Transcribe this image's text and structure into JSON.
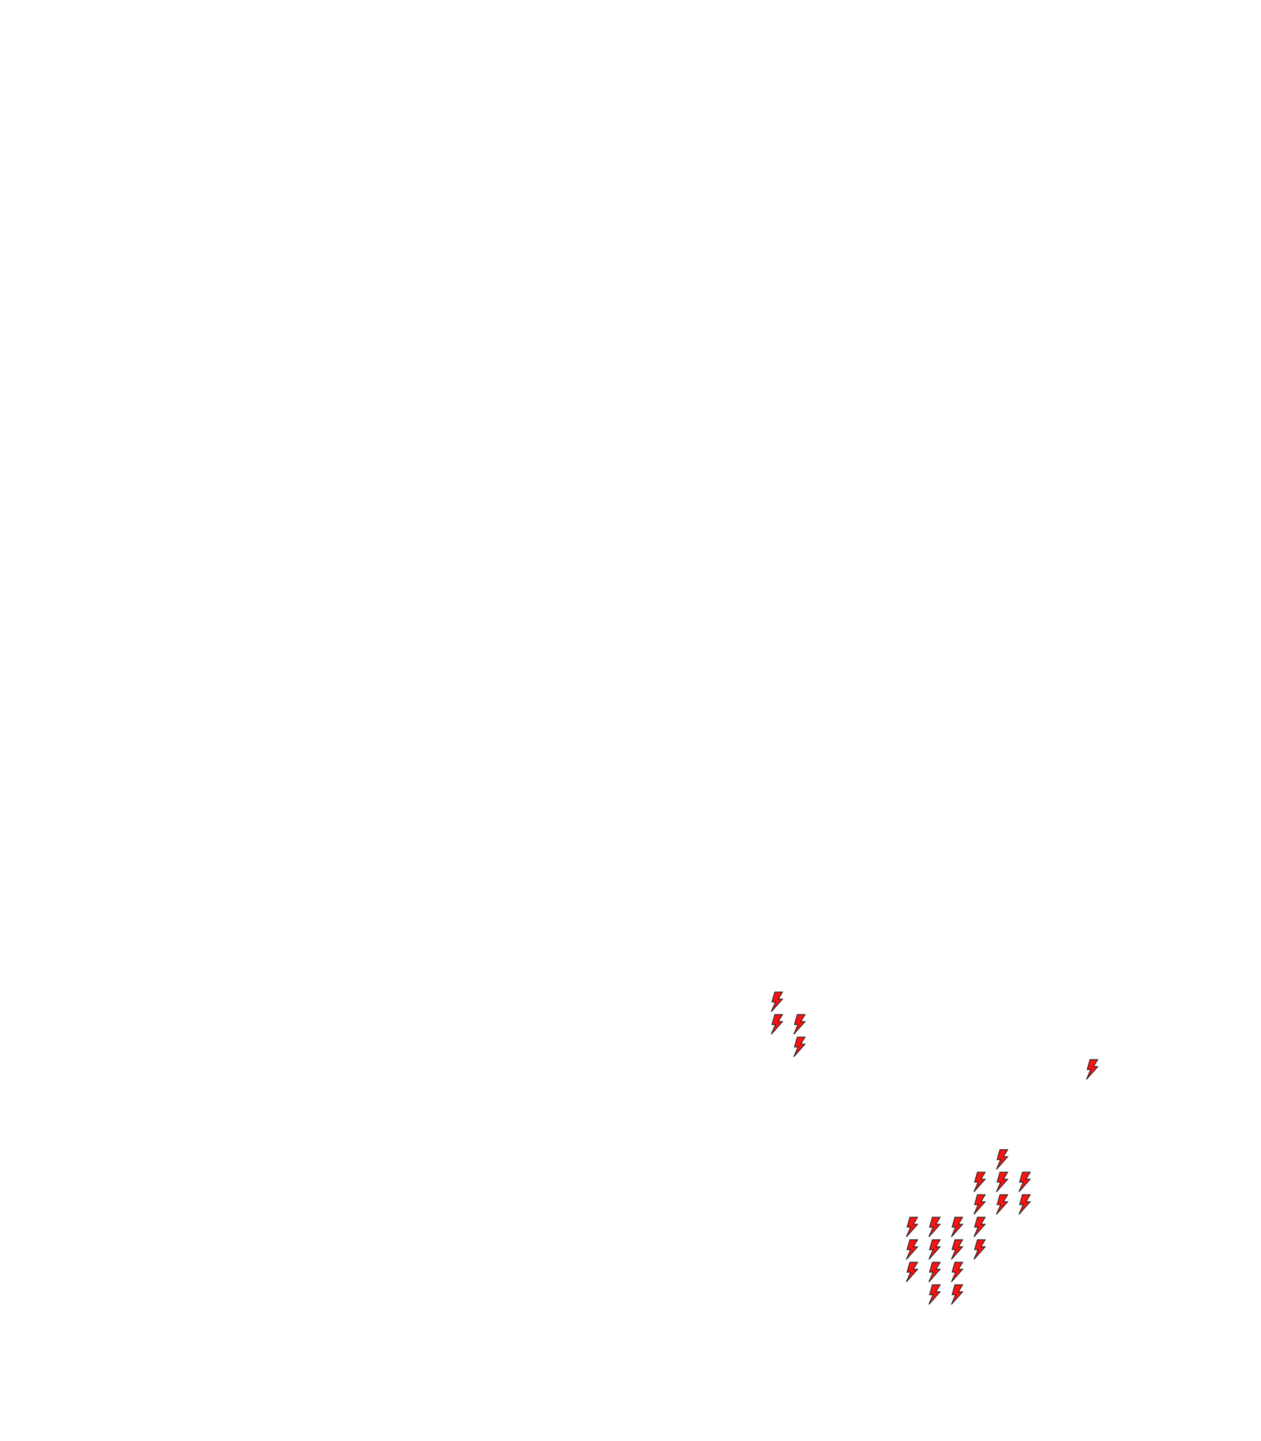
{
  "map": {
    "marker_icon": "lightning-bolt-icon",
    "marker_fill": "#ff1111",
    "marker_stroke": "#222222",
    "marker_count": 25
  }
}
